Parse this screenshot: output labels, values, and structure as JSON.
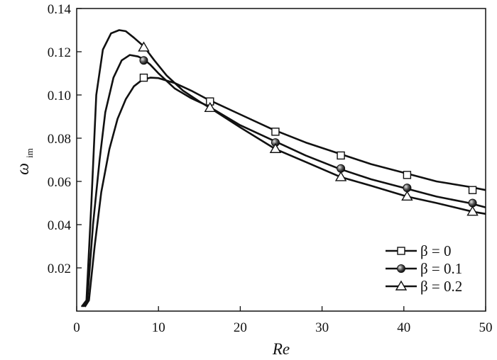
{
  "chart_data": {
    "type": "line",
    "title": "",
    "xlabel": "Re",
    "ylabel": "ω",
    "ylabel_sub": "im",
    "xlim": [
      0,
      50
    ],
    "ylim": [
      0,
      0.14
    ],
    "x_ticks": [
      0,
      10,
      20,
      30,
      40,
      50
    ],
    "x_tick_labels": [
      "0",
      "10",
      "20",
      "30",
      "40",
      "50"
    ],
    "y_ticks": [
      0.02,
      0.04,
      0.06,
      0.08,
      0.1,
      0.12,
      0.14
    ],
    "y_tick_labels": [
      "0.02",
      "0.04",
      "0.06",
      "0.08",
      "0.10",
      "0.12",
      "0.14"
    ],
    "grid": false,
    "legend_position": "bottom-right",
    "series": [
      {
        "name": "β = 0",
        "marker": "square",
        "curve": [
          [
            1.0,
            0.002
          ],
          [
            1.5,
            0.005
          ],
          [
            2.2,
            0.03
          ],
          [
            3,
            0.055
          ],
          [
            4,
            0.075
          ],
          [
            5,
            0.089
          ],
          [
            6,
            0.098
          ],
          [
            7,
            0.104
          ],
          [
            8,
            0.107
          ],
          [
            9,
            0.108
          ],
          [
            10,
            0.1078
          ],
          [
            12,
            0.1055
          ],
          [
            14,
            0.102
          ],
          [
            16,
            0.098
          ],
          [
            20,
            0.091
          ],
          [
            24,
            0.084
          ],
          [
            28,
            0.078
          ],
          [
            32,
            0.073
          ],
          [
            36,
            0.068
          ],
          [
            40,
            0.064
          ],
          [
            44,
            0.06
          ],
          [
            48,
            0.0575
          ],
          [
            50,
            0.056
          ]
        ],
        "markers": [
          [
            8.2,
            0.108
          ],
          [
            16.3,
            0.097
          ],
          [
            24.3,
            0.083
          ],
          [
            32.3,
            0.072
          ],
          [
            40.4,
            0.063
          ],
          [
            48.4,
            0.056
          ]
        ]
      },
      {
        "name": "β = 0.1",
        "marker": "circle",
        "curve": [
          [
            0.8,
            0.002
          ],
          [
            1.3,
            0.005
          ],
          [
            2,
            0.04
          ],
          [
            2.8,
            0.07
          ],
          [
            3.5,
            0.092
          ],
          [
            4.5,
            0.108
          ],
          [
            5.5,
            0.116
          ],
          [
            6.5,
            0.1185
          ],
          [
            7.5,
            0.1178
          ],
          [
            8.2,
            0.1165
          ],
          [
            9,
            0.114
          ],
          [
            10,
            0.11
          ],
          [
            12,
            0.103
          ],
          [
            14,
            0.0985
          ],
          [
            16,
            0.095
          ],
          [
            20,
            0.086
          ],
          [
            24,
            0.079
          ],
          [
            28,
            0.072
          ],
          [
            32,
            0.066
          ],
          [
            36,
            0.061
          ],
          [
            40,
            0.057
          ],
          [
            44,
            0.053
          ],
          [
            48,
            0.05
          ],
          [
            50,
            0.048
          ]
        ],
        "markers": [
          [
            8.2,
            0.116
          ],
          [
            24.3,
            0.078
          ],
          [
            32.3,
            0.066
          ],
          [
            40.4,
            0.057
          ],
          [
            48.4,
            0.05
          ]
        ]
      },
      {
        "name": "β = 0.2",
        "marker": "triangle",
        "curve": [
          [
            0.6,
            0.002
          ],
          [
            1.2,
            0.005
          ],
          [
            1.8,
            0.05
          ],
          [
            2.4,
            0.1
          ],
          [
            3.2,
            0.121
          ],
          [
            4.2,
            0.1285
          ],
          [
            5.2,
            0.13
          ],
          [
            6,
            0.1295
          ],
          [
            7,
            0.1265
          ],
          [
            8.2,
            0.1225
          ],
          [
            9.5,
            0.116
          ],
          [
            11,
            0.109
          ],
          [
            13,
            0.102
          ],
          [
            15,
            0.097
          ],
          [
            16.3,
            0.094
          ],
          [
            20,
            0.085
          ],
          [
            24.3,
            0.075
          ],
          [
            28,
            0.069
          ],
          [
            32.3,
            0.062
          ],
          [
            36,
            0.058
          ],
          [
            40.4,
            0.053
          ],
          [
            44,
            0.05
          ],
          [
            48.4,
            0.046
          ],
          [
            50,
            0.045
          ]
        ],
        "markers": [
          [
            8.2,
            0.122
          ],
          [
            16.3,
            0.094
          ],
          [
            24.3,
            0.075
          ],
          [
            32.3,
            0.062
          ],
          [
            40.4,
            0.053
          ],
          [
            48.4,
            0.046
          ]
        ]
      }
    ]
  }
}
